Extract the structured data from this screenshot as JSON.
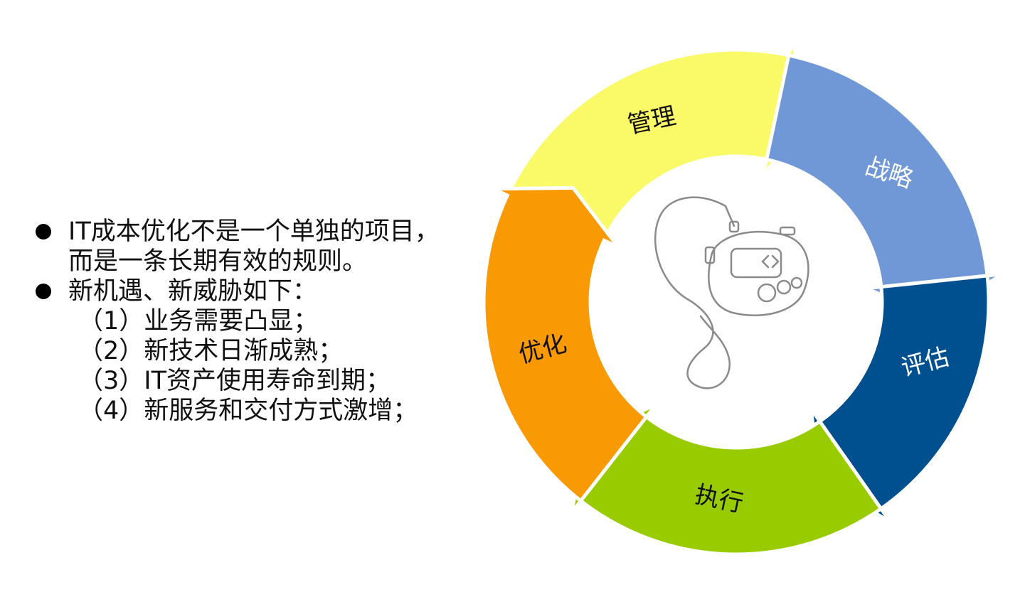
{
  "bullets": [
    {
      "lines": [
        "IT成本优化不是一个单独的项目，",
        "而是一条长期有效的规则。"
      ]
    },
    {
      "lines": [
        "新机遇、新威胁如下："
      ]
    }
  ],
  "sub_items": [
    "（1）业务需要凸显；",
    "（2）新技术日渐成熟；",
    "（3）IT资产使用寿命到期；",
    "（4）新服务和交付方式激增；"
  ],
  "cycle": {
    "segments": [
      {
        "label": "管理",
        "color": "#fafa69",
        "text_color": "#111111"
      },
      {
        "label": "战略",
        "color": "#7097d6",
        "text_color": "#ffffff"
      },
      {
        "label": "评估",
        "color": "#00508f",
        "text_color": "#ffffff"
      },
      {
        "label": "执行",
        "color": "#99cc00",
        "text_color": "#111111"
      },
      {
        "label": "优化",
        "color": "#f99a05",
        "text_color": "#111111"
      }
    ],
    "center_icon": "stopwatch-icon"
  }
}
